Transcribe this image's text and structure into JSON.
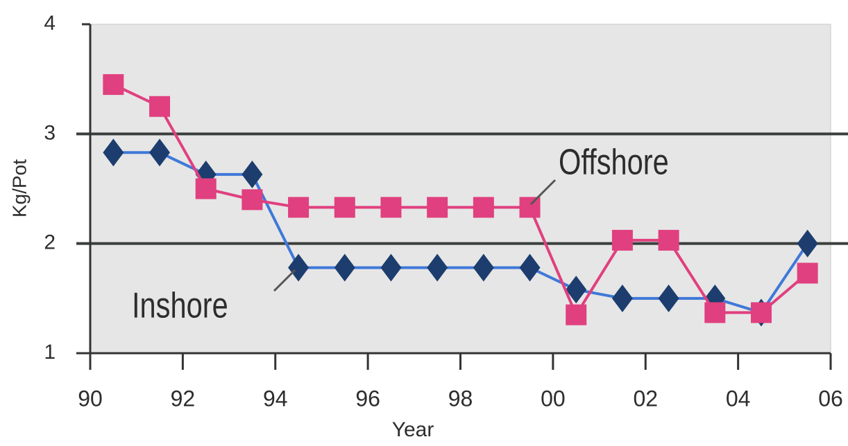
{
  "chart_data": {
    "type": "line",
    "x": [
      1990.5,
      1991.5,
      1992.5,
      1993.5,
      1994.5,
      1995.5,
      1996.5,
      1997.5,
      1998.5,
      1999.5,
      2000.5,
      2001.5,
      2002.5,
      2003.5,
      2004.5,
      2005.5
    ],
    "series": [
      {
        "name": "Inshore",
        "color": "#1c3d6e",
        "marker": "diamond",
        "values": [
          2.83,
          2.83,
          2.63,
          2.63,
          1.78,
          1.78,
          1.78,
          1.78,
          1.78,
          1.78,
          1.58,
          1.5,
          1.5,
          1.5,
          1.37,
          2.0
        ]
      },
      {
        "name": "Offshore",
        "color": "#e0407f",
        "marker": "square",
        "values": [
          3.45,
          3.25,
          2.5,
          2.4,
          2.33,
          2.33,
          2.33,
          2.33,
          2.33,
          2.33,
          1.35,
          2.03,
          2.03,
          1.37,
          1.37,
          1.73
        ]
      }
    ],
    "xlim": [
      1990,
      2006
    ],
    "xticks": [
      {
        "value": 1990,
        "label": "90"
      },
      {
        "value": 1992,
        "label": "92"
      },
      {
        "value": 1994,
        "label": "94"
      },
      {
        "value": 1996,
        "label": "96"
      },
      {
        "value": 1998,
        "label": "98"
      },
      {
        "value": 2000,
        "label": "00"
      },
      {
        "value": 2002,
        "label": "02"
      },
      {
        "value": 2004,
        "label": "04"
      },
      {
        "value": 2006,
        "label": "06"
      }
    ],
    "ylim": [
      1,
      4
    ],
    "yticks": [
      1,
      2,
      3,
      4
    ],
    "grid": true,
    "xlabel": "Year",
    "ylabel": "Kg/Pot"
  }
}
